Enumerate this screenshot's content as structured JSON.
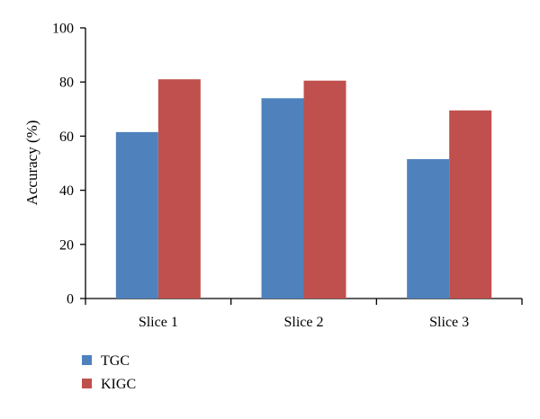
{
  "chart_data": {
    "type": "bar",
    "categories": [
      "Slice 1",
      "Slice 2",
      "Slice 3"
    ],
    "series": [
      {
        "name": "TGC",
        "values": [
          61.5,
          74,
          51.5
        ],
        "color": "#4f81bd"
      },
      {
        "name": "KIGC",
        "values": [
          81,
          80.5,
          69.5
        ],
        "color": "#c0504d"
      }
    ],
    "title": "",
    "xlabel": "",
    "ylabel": "Accuracy (%)",
    "ylim": [
      0,
      100
    ],
    "yticks": [
      "0",
      "20",
      "40",
      "60",
      "80",
      "100"
    ],
    "grid": false,
    "legend_position": "bottom-left"
  }
}
